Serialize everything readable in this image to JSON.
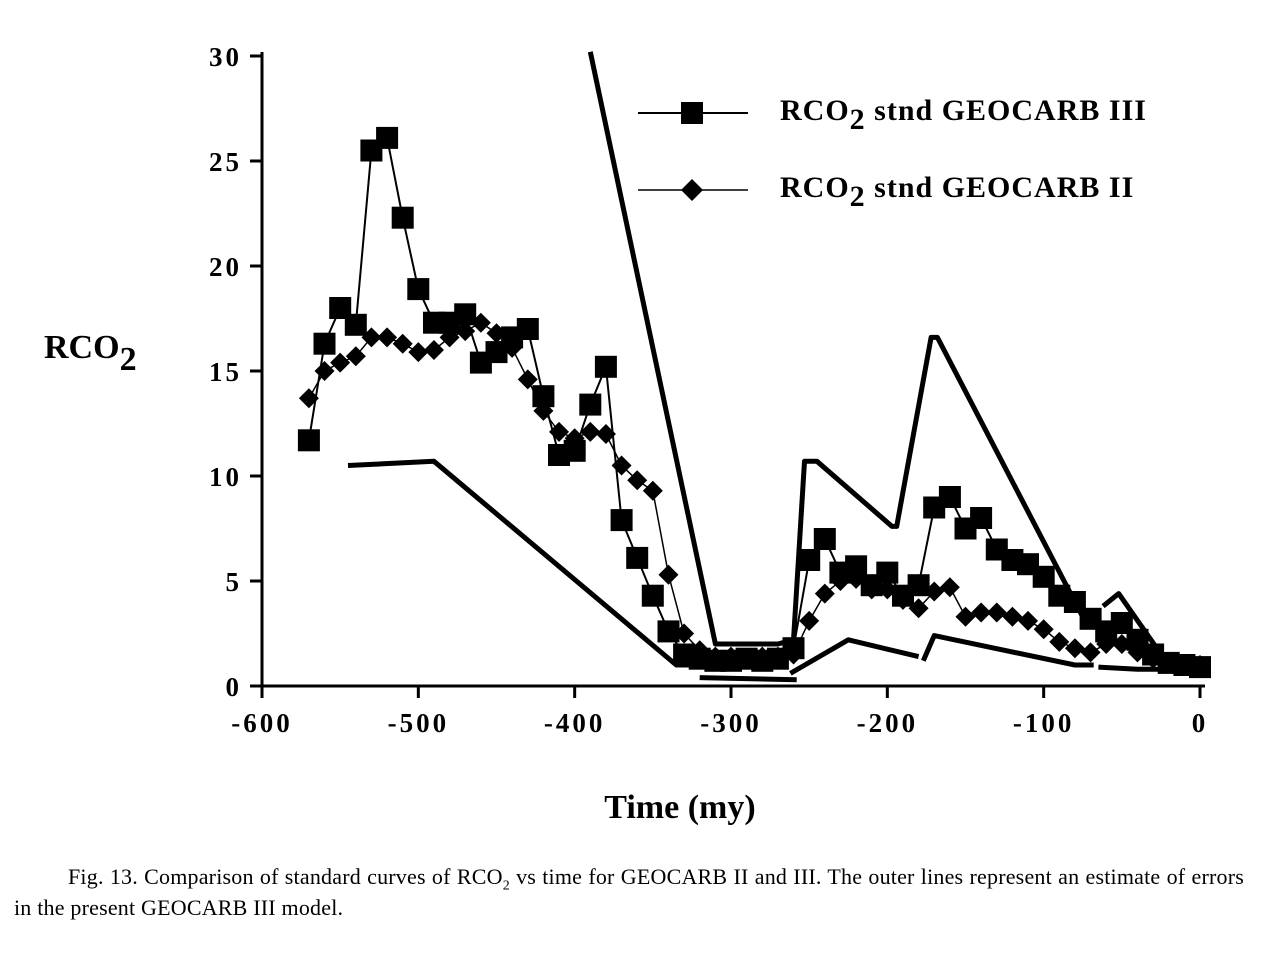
{
  "chart_data": {
    "type": "line",
    "ylabel": "RCO2",
    "ylabel_sub": "2",
    "xlabel": "Time  (my)",
    "xlim": [
      -600,
      0
    ],
    "ylim": [
      0,
      30
    ],
    "xticks": [
      "-600",
      "-500",
      "-400",
      "-300",
      "-200",
      "-100",
      "0"
    ],
    "xtick_values": [
      -600,
      -500,
      -400,
      -300,
      -200,
      -100,
      0
    ],
    "yticks": [
      "0",
      "5",
      "10",
      "15",
      "20",
      "25",
      "30"
    ],
    "ytick_values": [
      0,
      5,
      10,
      15,
      20,
      25,
      30
    ],
    "legend_position": "top-right",
    "series": [
      {
        "name": "RCO2 stnd GEOCARB III",
        "legend_prefix": "RCO",
        "legend_sub": "2",
        "legend_suffix": " stnd GEOCARB III",
        "marker": "square",
        "x": [
          -570,
          -560,
          -550,
          -540,
          -530,
          -520,
          -510,
          -500,
          -490,
          -480,
          -470,
          -460,
          -450,
          -440,
          -430,
          -420,
          -410,
          -400,
          -390,
          -380,
          -370,
          -360,
          -350,
          -340,
          -330,
          -320,
          -310,
          -300,
          -290,
          -280,
          -270,
          -260,
          -250,
          -240,
          -230,
          -220,
          -210,
          -200,
          -190,
          -180,
          -170,
          -160,
          -150,
          -140,
          -130,
          -120,
          -110,
          -100,
          -90,
          -80,
          -70,
          -60,
          -50,
          -40,
          -30,
          -20,
          -10,
          0
        ],
        "y": [
          11.7,
          16.3,
          18.0,
          17.2,
          25.5,
          26.1,
          22.3,
          18.9,
          17.3,
          17.3,
          17.7,
          15.4,
          15.9,
          16.6,
          17.0,
          13.8,
          11.0,
          11.2,
          13.4,
          15.2,
          7.9,
          6.1,
          4.3,
          2.6,
          1.5,
          1.3,
          1.2,
          1.2,
          1.3,
          1.2,
          1.3,
          1.8,
          6.0,
          7.0,
          5.4,
          5.7,
          4.8,
          5.4,
          4.3,
          4.8,
          8.5,
          9.0,
          7.5,
          8.0,
          6.5,
          6.0,
          5.8,
          5.2,
          4.3,
          4.0,
          3.2,
          2.6,
          3.0,
          2.2,
          1.5,
          1.1,
          1.0,
          0.9
        ]
      },
      {
        "name": "RCO2 stnd GEOCARB II",
        "legend_prefix": "RCO",
        "legend_sub": "2",
        "legend_suffix": " stnd GEOCARB II",
        "marker": "diamond",
        "x": [
          -570,
          -560,
          -550,
          -540,
          -530,
          -520,
          -510,
          -500,
          -490,
          -480,
          -470,
          -460,
          -450,
          -440,
          -430,
          -420,
          -410,
          -400,
          -390,
          -380,
          -370,
          -360,
          -350,
          -340,
          -330,
          -320,
          -310,
          -300,
          -290,
          -280,
          -270,
          -260,
          -250,
          -240,
          -230,
          -220,
          -210,
          -200,
          -190,
          -180,
          -170,
          -160,
          -150,
          -140,
          -130,
          -120,
          -110,
          -100,
          -90,
          -80,
          -70,
          -60,
          -50,
          -40,
          -30,
          -20,
          -10,
          0
        ],
        "y": [
          13.7,
          15.0,
          15.4,
          15.7,
          16.6,
          16.6,
          16.3,
          15.9,
          16.0,
          16.6,
          16.9,
          17.3,
          16.8,
          16.1,
          14.6,
          13.1,
          12.1,
          11.8,
          12.1,
          12.0,
          10.5,
          9.8,
          9.3,
          5.3,
          2.5,
          1.7,
          1.4,
          1.4,
          1.3,
          1.4,
          1.4,
          1.5,
          3.1,
          4.4,
          5.0,
          5.1,
          4.6,
          4.6,
          4.1,
          3.7,
          4.5,
          4.7,
          3.3,
          3.5,
          3.5,
          3.3,
          3.1,
          2.7,
          2.1,
          1.8,
          1.6,
          2.0,
          2.0,
          1.6,
          1.3,
          1.1,
          1.0,
          1.0
        ]
      },
      {
        "name": "Upper error estimate",
        "marker": "none",
        "segments": [
          [
            [
              -390,
              30.2
            ],
            [
              -310,
              2.0
            ],
            [
              -270,
              2.0
            ],
            [
              -260,
              2.2
            ],
            [
              -253,
              10.7
            ],
            [
              -245,
              10.7
            ],
            [
              -197,
              7.6
            ],
            [
              -194,
              7.6
            ],
            [
              -172,
              16.6
            ],
            [
              -168,
              16.6
            ],
            [
              -73,
              3.0
            ],
            [
              -65,
              3.0
            ]
          ],
          [
            [
              -62,
              3.8
            ],
            [
              -52,
              4.4
            ],
            [
              -22,
              1.2
            ],
            [
              0,
              1.2
            ]
          ]
        ]
      },
      {
        "name": "Lower error estimate",
        "marker": "none",
        "segments": [
          [
            [
              -545,
              10.5
            ],
            [
              -490,
              10.7
            ],
            [
              -335,
              1.0
            ],
            [
              -325,
              1.0
            ]
          ],
          [
            [
              -320,
              0.4
            ],
            [
              -258,
              0.3
            ]
          ],
          [
            [
              -262,
              0.6
            ],
            [
              -225,
              2.2
            ],
            [
              -180,
              1.4
            ]
          ],
          [
            [
              -177,
              1.2
            ],
            [
              -170,
              2.4
            ],
            [
              -80,
              1.0
            ],
            [
              -68,
              1.0
            ]
          ],
          [
            [
              -65,
              0.9
            ],
            [
              -40,
              0.8
            ],
            [
              -20,
              0.8
            ],
            [
              0,
              0.8
            ]
          ]
        ]
      }
    ]
  },
  "caption": {
    "text_part1": "Fig. 13. Comparison of standard curves of RCO",
    "text_sub": "2",
    "text_part2": " vs time for GEOCARB II and III. The outer lines represent an estimate of errors in the present GEOCARB III model."
  }
}
